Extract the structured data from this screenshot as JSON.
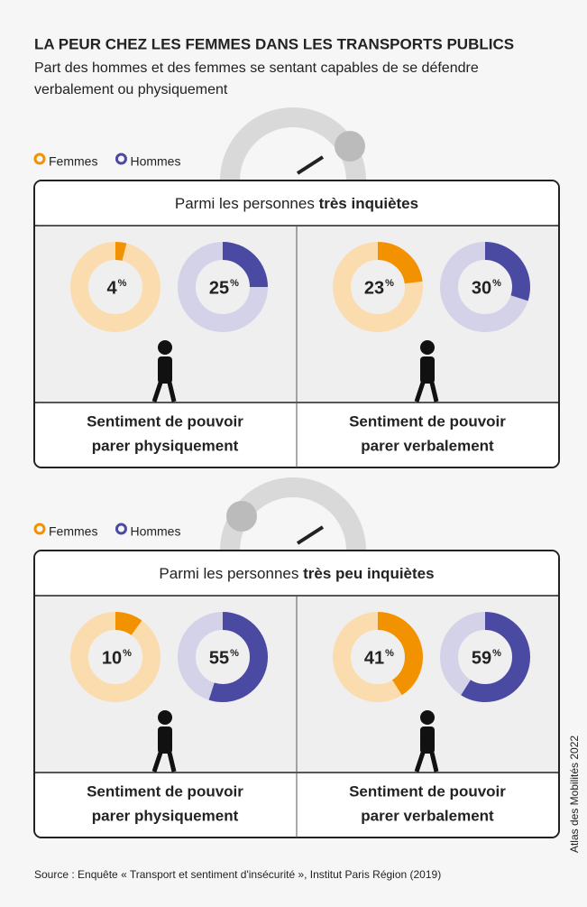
{
  "chart_data": {
    "type": "donut",
    "title": "LA PEUR CHEZ LES FEMMES DANS LES TRANSPORTS PUBLICS",
    "subtitle": [
      "Part des hommes et des femmes se sentant capables de se défendre",
      "verbalement ou physiquement"
    ],
    "panels": [
      {
        "legend": [
          {
            "name": "Femmes",
            "color": "#f39200",
            "track": "#fbdcae"
          },
          {
            "name": "Hommes",
            "color": "#4b4aa3",
            "track": "#d3d2e8"
          }
        ],
        "header": [
          "Parmi les personnes ",
          "très inquiètes"
        ],
        "unit": "%",
        "charts": [
          {
            "values": [
              4,
              25
            ],
            "caption": [
              "Sentiment de pouvoir",
              "parer physiquement"
            ]
          },
          {
            "values": [
              23,
              30
            ],
            "caption": [
              "Sentiment de pouvoir",
              "parer verbalement"
            ]
          }
        ]
      },
      {
        "legend": [
          {
            "name": "Femmes",
            "color": "#f39200",
            "track": "#fbdcae"
          },
          {
            "name": "Hommes",
            "color": "#4b4aa3",
            "track": "#d3d2e8"
          }
        ],
        "header": [
          "Parmi les personnes ",
          "très peu inquiètes"
        ],
        "unit": "%",
        "charts": [
          {
            "values": [
              10,
              55
            ],
            "caption": [
              "Sentiment de pouvoir",
              "parer physiquement"
            ]
          },
          {
            "values": [
              41,
              59
            ],
            "caption": [
              "Sentiment de pouvoir",
              "parer verbalement"
            ]
          }
        ]
      }
    ],
    "source": "Source : Enquête « Transport et sentiment d'insécurité », Institut Paris Région (2019)",
    "credit": "Atlas des Mobilités 2022"
  }
}
